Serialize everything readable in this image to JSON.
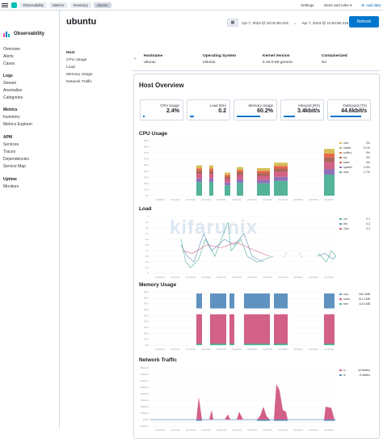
{
  "header": {
    "breadcrumbs": [
      "Observability",
      "Metrics",
      "Inventory",
      "ubuntu"
    ],
    "settings": "Settings",
    "alerts": "Alerts and rules",
    "add_data": "Add data"
  },
  "sidebar": {
    "title": "Observability",
    "top": [
      "Overview",
      "Alerts",
      "Cases"
    ],
    "logs": {
      "title": "Logs",
      "items": [
        "Stream",
        "Anomalies",
        "Categories"
      ]
    },
    "metrics": {
      "title": "Metrics",
      "items": [
        "Inventory",
        "Metrics Explorer"
      ]
    },
    "apm": {
      "title": "APM",
      "items": [
        "Services",
        "Traces",
        "Dependencies",
        "Service Map"
      ]
    },
    "uptime": {
      "title": "Uptime",
      "items": [
        "Monitors"
      ]
    }
  },
  "page": {
    "title": "ubuntu",
    "date_start": "Apr 7, 2023 @ 20:02:50.216",
    "date_end": "Apr 7, 2023 @ 21:02:50.216",
    "arrow": "→",
    "refresh": "Refresh"
  },
  "host_tabs": {
    "title": "Host",
    "items": [
      "CPU Usage",
      "Load",
      "Memory Usage",
      "Network Traffic"
    ]
  },
  "metadata": {
    "hostname_label": "Hostname",
    "hostname": "ubuntu",
    "os_label": "Operating System",
    "os": "Ubuntu",
    "kernel_label": "Kernel Version",
    "kernel": "5.15.0-69-generic",
    "containerized_label": "Containerized",
    "containerized": "No"
  },
  "overview": {
    "title": "Host Overview",
    "kpis": [
      {
        "label": "CPU Usage",
        "value": "2.4%",
        "fill": 0.024
      },
      {
        "label": "Load (5m)",
        "value": "0.2",
        "fill": 0.1
      },
      {
        "label": "Memory Usage",
        "value": "60.2%",
        "fill": 0.602
      },
      {
        "label": "Inbound (RX)",
        "value": "3.4kbit/s",
        "fill": 0.3
      },
      {
        "label": "Outbound (TX)",
        "value": "44.6kbit/s",
        "fill": 0.8
      }
    ]
  },
  "watermark": "kifarunix",
  "x_ticks": [
    "20:05:00",
    "20:10:00",
    "20:15:00",
    "20:20:00",
    "20:25:00",
    "20:30:00",
    "20:35:00",
    "20:40:00",
    "20:45:00",
    "20:50:00",
    "20:55:00",
    "21:00:00"
  ],
  "chart_data": [
    {
      "title": "CPU Usage",
      "type": "area",
      "y_ticks": [
        "0%",
        "10%",
        "20%",
        "30%",
        "40%",
        "50%",
        "60%",
        "70%",
        "80%",
        "90%"
      ],
      "ylim": [
        0,
        90
      ],
      "series": [
        {
          "name": "nice",
          "value": "0%",
          "color": "#d6bf57"
        },
        {
          "name": "iowait",
          "value": "0.1%",
          "color": "#b9a888"
        },
        {
          "name": "softirq",
          "value": "0%",
          "color": "#da8b45"
        },
        {
          "name": "irq",
          "value": "0%",
          "color": "#aa6556"
        },
        {
          "name": "steal",
          "value": "0%",
          "color": "#e7664c"
        },
        {
          "name": "system",
          "value": "0.4%",
          "color": "#9170b8"
        },
        {
          "name": "user",
          "value": "1.7%",
          "color": "#54b399"
        }
      ]
    },
    {
      "title": "Load",
      "type": "line",
      "y_ticks": [
        "0",
        "0.1",
        "0.2",
        "0.3",
        "0.4",
        "0.5",
        "0.6",
        "0.7",
        "0.8",
        "0.9",
        "1"
      ],
      "ylim": [
        0,
        1
      ],
      "series": [
        {
          "name": "1m",
          "value": "0.1",
          "color": "#54b399"
        },
        {
          "name": "5m",
          "value": "0.2",
          "color": "#6092c0"
        },
        {
          "name": "15m",
          "value": "0.3",
          "color": "#d36086"
        }
      ]
    },
    {
      "title": "Memory Usage",
      "type": "area",
      "y_ticks": [
        "0%",
        "10%",
        "20%",
        "30%",
        "40%",
        "50%",
        "60%",
        "70%",
        "80%",
        "90%"
      ],
      "ylim": [
        0,
        100
      ],
      "series": [
        {
          "name": "cac...",
          "value": "252.4MB",
          "color": "#6092c0"
        },
        {
          "name": "used",
          "value": "512.1MB",
          "color": "#d36086"
        },
        {
          "name": "free",
          "value": "123.1MB",
          "color": "#54b399"
        }
      ]
    },
    {
      "title": "Network Traffic",
      "type": "area",
      "y_ticks": [
        "-10kbit/s",
        "0bit/s",
        "10kbit/s",
        "20kbit/s",
        "30kbit/s",
        "40kbit/s",
        "50kbit/s",
        "60kbit/s",
        "70kbit/s",
        "80kbit/s"
      ],
      "ylim": [
        -10,
        80
      ],
      "series": [
        {
          "name": "o...",
          "value": "44.6kbit/s",
          "color": "#d36086"
        },
        {
          "name": "in",
          "value": "-3.4kbit/s",
          "color": "#6092c0"
        }
      ]
    }
  ]
}
